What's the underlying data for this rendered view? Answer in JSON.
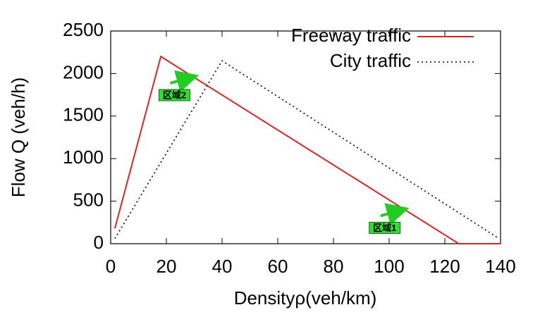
{
  "chart_data": {
    "type": "line",
    "x_label": "Densityρ(veh/km)",
    "y_label": "Flow Q (veh/h)",
    "series": [
      {
        "name": "Freeway traffic",
        "color": "#d62728",
        "dash": "solid",
        "x": [
          1.5,
          18,
          125,
          140
        ],
        "values": [
          180,
          2200,
          0,
          0
        ]
      },
      {
        "name": "City traffic",
        "color": "#000000",
        "dash": "dotted",
        "x": [
          1.5,
          40,
          139
        ],
        "values": [
          60,
          2150,
          70
        ]
      }
    ],
    "annotations": [
      {
        "text": "区域2",
        "x": 30.5,
        "y": 1970
      },
      {
        "text": "区域1",
        "x": 106,
        "y": 410
      }
    ],
    "xlim": [
      0,
      140
    ],
    "xticks": [
      0,
      20,
      40,
      60,
      80,
      100,
      120,
      140
    ],
    "ylim": [
      0,
      2500
    ],
    "yticks": [
      0,
      500,
      1000,
      1500,
      2000,
      2500
    ],
    "legend": "upper-right",
    "grid": false
  }
}
